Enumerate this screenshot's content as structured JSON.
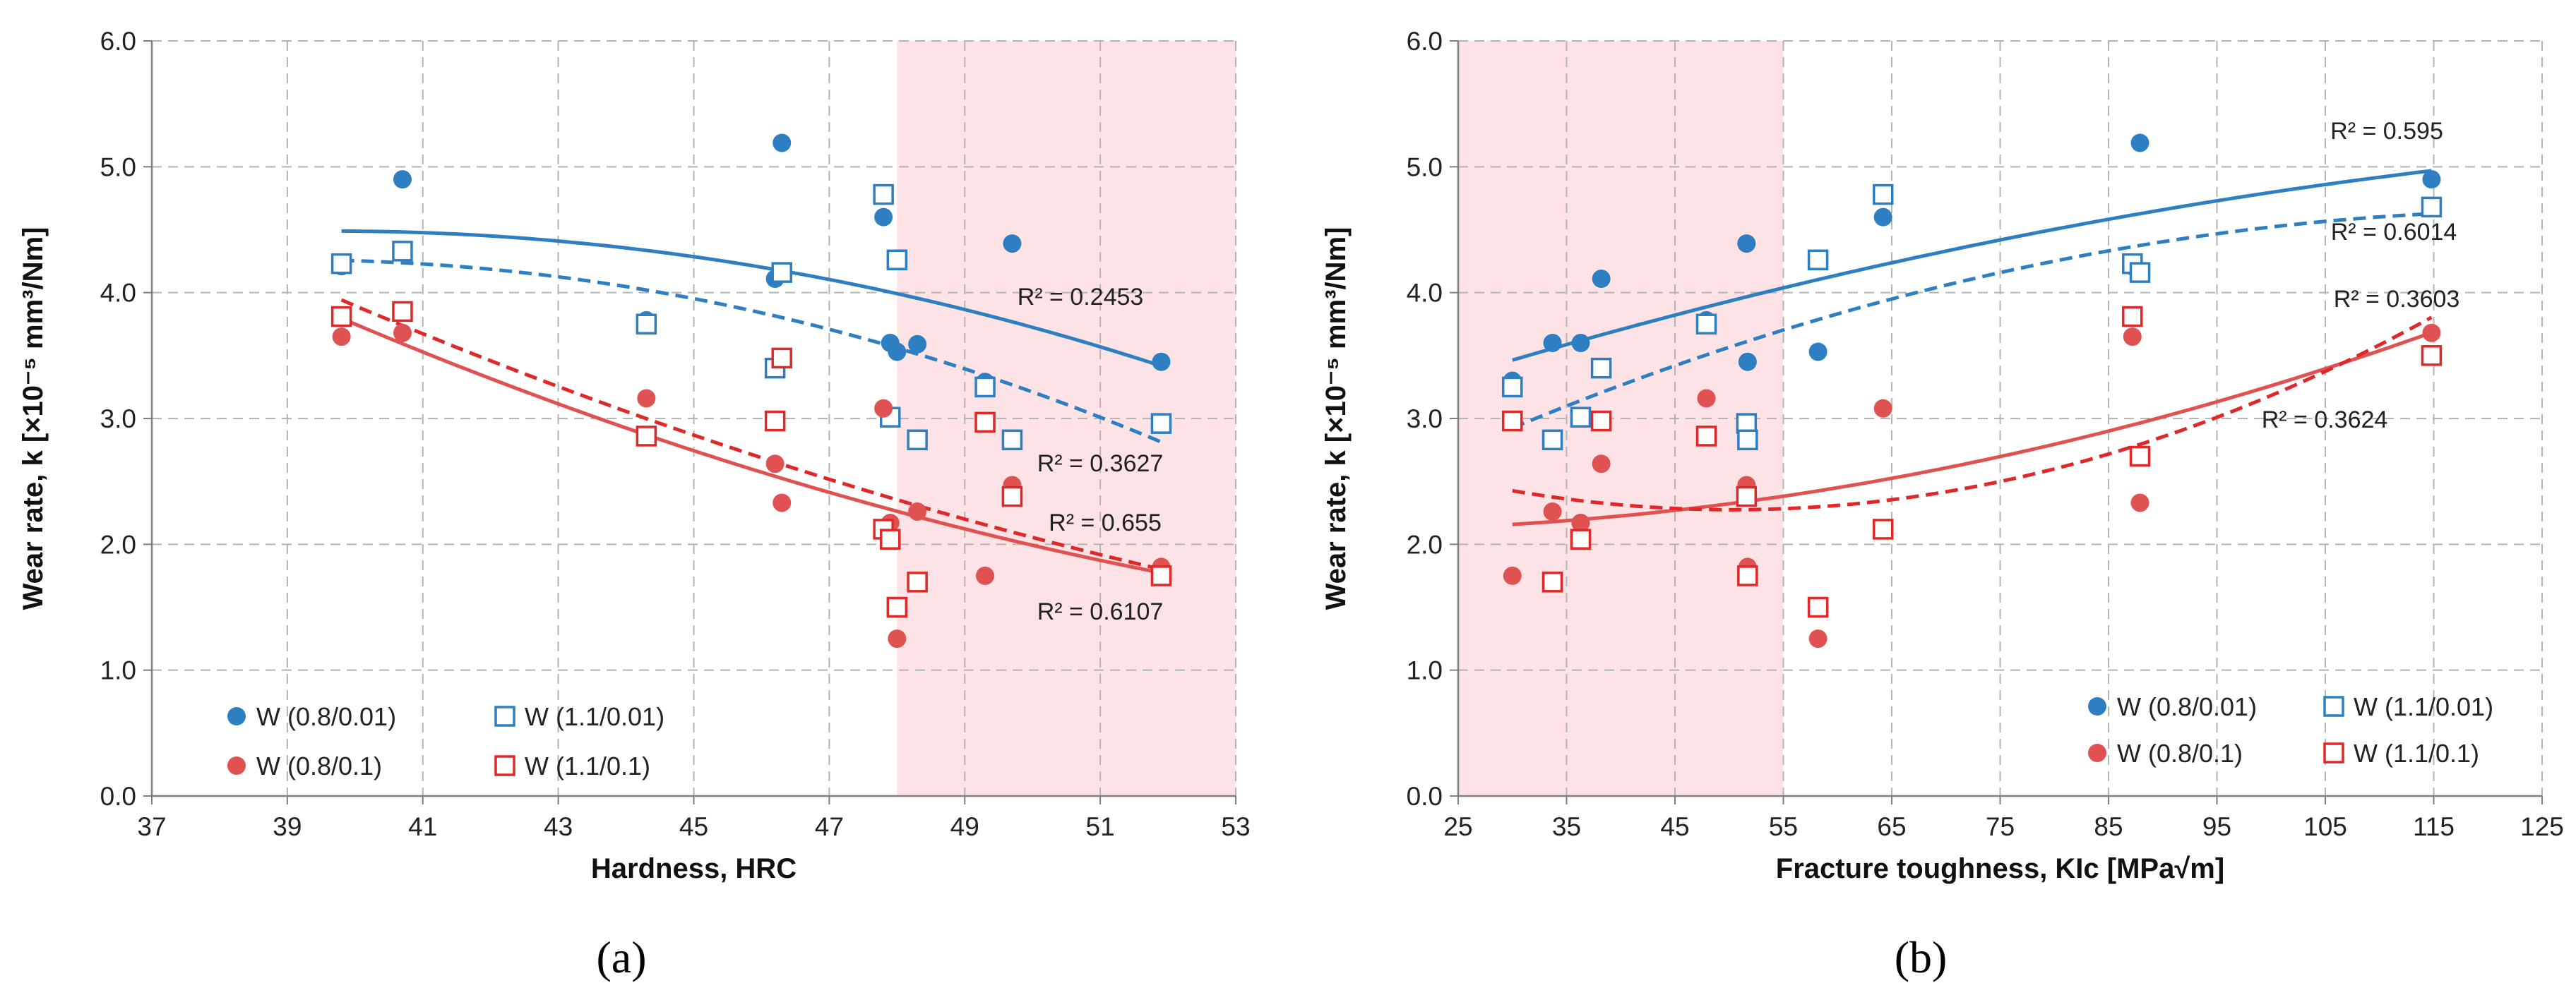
{
  "chart_data": [
    {
      "type": "scatter",
      "panel_label": "(a)",
      "title": "",
      "xlabel": "Hardness, HRC",
      "ylabel": "Wear rate, k [×10⁻⁵ mm³/Nm]",
      "xlim": [
        37,
        53
      ],
      "ylim": [
        0,
        6
      ],
      "xticks": [
        "37",
        "39",
        "41",
        "43",
        "45",
        "47",
        "49",
        "51",
        "53"
      ],
      "yticks": [
        "0.0",
        "1.0",
        "2.0",
        "3.0",
        "4.0",
        "5.0",
        "6.0"
      ],
      "grid": true,
      "shaded_region": {
        "x_from": 48,
        "x_to": 53,
        "color": "#fde3e5"
      },
      "legend_position": "bottom-left",
      "series": [
        {
          "name": "W (0.8/0.01)",
          "marker": "filled-circle",
          "color": "#2e7fc1",
          "x": [
            39.8,
            40.7,
            44.3,
            46.2,
            46.3,
            47.8,
            47.9,
            48.0,
            48.3,
            49.3,
            49.7,
            51.9
          ],
          "y": [
            4.21,
            4.9,
            3.78,
            4.11,
            5.19,
            4.6,
            3.6,
            3.53,
            3.59,
            3.29,
            4.39,
            3.45
          ],
          "trend": {
            "style": "solid",
            "color": "#2e7fc1",
            "r2": "R² = 0.2453"
          }
        },
        {
          "name": "W (1.1/0.01)",
          "marker": "open-square",
          "color": "#2e7fc1",
          "x": [
            39.8,
            40.7,
            44.3,
            46.2,
            46.3,
            47.8,
            47.9,
            48.0,
            48.3,
            49.3,
            49.7,
            51.9
          ],
          "y": [
            4.23,
            4.33,
            3.75,
            3.4,
            4.16,
            4.78,
            3.01,
            4.26,
            2.83,
            3.25,
            2.83,
            2.96
          ],
          "trend": {
            "style": "dashed",
            "color": "#2e7fc1",
            "r2": "R² = 0.3627"
          }
        },
        {
          "name": "W (0.8/0.1)",
          "marker": "filled-circle",
          "color": "#e05252",
          "x": [
            39.8,
            40.7,
            44.3,
            46.2,
            46.3,
            47.8,
            47.9,
            48.0,
            48.3,
            49.3,
            49.7,
            51.9
          ],
          "y": [
            3.65,
            3.68,
            3.16,
            2.64,
            2.33,
            3.08,
            2.17,
            1.25,
            2.26,
            1.75,
            2.47,
            1.82
          ],
          "trend": {
            "style": "solid",
            "color": "#e05252",
            "r2": "R² = 0.655"
          }
        },
        {
          "name": "W (1.1/0.1)",
          "marker": "open-square",
          "color": "#e02828",
          "x": [
            39.8,
            40.7,
            44.3,
            46.2,
            46.3,
            47.8,
            47.9,
            48.0,
            48.3,
            49.3,
            49.7,
            51.9
          ],
          "y": [
            3.81,
            3.85,
            2.86,
            2.98,
            3.48,
            2.12,
            2.04,
            1.5,
            1.7,
            2.97,
            2.38,
            1.75
          ],
          "trend": {
            "style": "dashed",
            "color": "#e02828",
            "r2": "R² = 0.6107"
          }
        }
      ]
    },
    {
      "type": "scatter",
      "panel_label": "(b)",
      "title": "",
      "xlabel": "Fracture toughness, KIc [MPa√m]",
      "ylabel": "Wear rate, k [×10⁻⁵ mm³/Nm]",
      "xlim": [
        25,
        125
      ],
      "ylim": [
        0,
        6
      ],
      "xticks": [
        "25",
        "35",
        "45",
        "55",
        "65",
        "75",
        "85",
        "95",
        "105",
        "115",
        "125"
      ],
      "yticks": [
        "0.0",
        "1.0",
        "2.0",
        "3.0",
        "4.0",
        "5.0",
        "6.0"
      ],
      "grid": true,
      "shaded_region": {
        "x_from": 25,
        "x_to": 55,
        "color": "#fde3e5"
      },
      "legend_position": "bottom-right",
      "series": [
        {
          "name": "W (0.8/0.01)",
          "marker": "filled-circle",
          "color": "#2e7fc1",
          "x": [
            30,
            33.7,
            36.3,
            38.2,
            47.9,
            51.6,
            51.7,
            58.2,
            64.2,
            87.2,
            87.9,
            114.8
          ],
          "y": [
            3.3,
            3.6,
            3.6,
            4.11,
            3.78,
            4.39,
            3.45,
            3.53,
            4.6,
            4.21,
            5.19,
            4.9
          ],
          "trend": {
            "style": "solid",
            "color": "#2e7fc1",
            "r2": "R² = 0.595"
          }
        },
        {
          "name": "W (1.1/0.01)",
          "marker": "open-square",
          "color": "#2e7fc1",
          "x": [
            30,
            33.7,
            36.3,
            38.2,
            47.9,
            51.6,
            51.7,
            58.2,
            64.2,
            87.2,
            87.9,
            114.8
          ],
          "y": [
            3.25,
            2.83,
            3.01,
            3.4,
            3.75,
            2.96,
            2.83,
            4.26,
            4.78,
            4.23,
            4.16,
            4.68
          ],
          "trend": {
            "style": "dashed",
            "color": "#2e7fc1",
            "r2": "R² = 0.6014"
          }
        },
        {
          "name": "W (0.8/0.1)",
          "marker": "filled-circle",
          "color": "#e05252",
          "x": [
            30,
            33.7,
            36.3,
            38.2,
            47.9,
            51.6,
            51.7,
            58.2,
            64.2,
            87.2,
            87.9,
            114.8
          ],
          "y": [
            1.75,
            2.26,
            2.17,
            2.64,
            3.16,
            2.47,
            1.82,
            1.25,
            3.08,
            3.65,
            2.33,
            3.68
          ],
          "trend": {
            "style": "solid",
            "color": "#e05252",
            "r2": "R² = 0.3603"
          }
        },
        {
          "name": "W (1.1/0.1)",
          "marker": "open-square",
          "color": "#e02828",
          "x": [
            30,
            33.7,
            36.3,
            38.2,
            47.9,
            51.6,
            51.7,
            58.2,
            64.2,
            87.2,
            87.9,
            114.8
          ],
          "y": [
            2.98,
            1.7,
            2.04,
            2.98,
            2.86,
            2.38,
            1.75,
            1.5,
            2.12,
            3.81,
            2.7,
            3.5
          ],
          "trend": {
            "style": "dashed",
            "color": "#e02828",
            "r2": "R² = 0.3624"
          }
        }
      ]
    }
  ]
}
